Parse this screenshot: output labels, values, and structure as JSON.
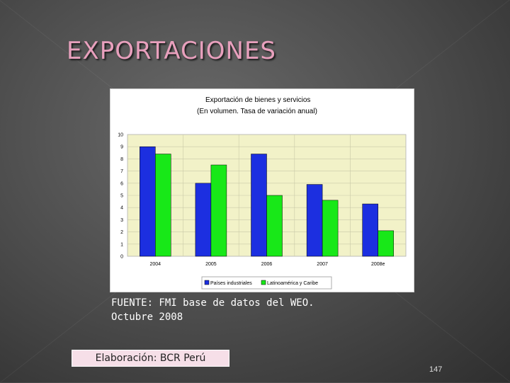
{
  "slide": {
    "title": "EXPORTACIONES",
    "source_line1": "FUENTE: FMI base de datos del WEO.",
    "source_line2": "Octubre 2008",
    "credit": "Elaboración: BCR Perú",
    "page_number": "147"
  },
  "colors": {
    "series1": "#1c2fe0",
    "series2": "#18e818",
    "plot_bg": "#f2f2c8",
    "chart_bg": "#ffffff"
  },
  "chart_data": {
    "type": "bar",
    "title_line1": "Exportación de bienes y servicios",
    "title_line2": "(En volumen. Tasa de variación anual)",
    "categories": [
      "2004",
      "2005",
      "2006",
      "2007",
      "2008e"
    ],
    "series": [
      {
        "name": "Países industriales",
        "values": [
          9.0,
          6.0,
          8.4,
          5.9,
          4.3
        ]
      },
      {
        "name": "Latinoamérica y Caribe",
        "values": [
          8.4,
          7.5,
          5.0,
          4.6,
          2.1
        ]
      }
    ],
    "ylim": [
      0,
      10
    ],
    "yticks": [
      "0",
      "1",
      "2",
      "3",
      "4",
      "5",
      "6",
      "7",
      "8",
      "9",
      "10"
    ],
    "grid": true,
    "legend_position": "bottom"
  }
}
